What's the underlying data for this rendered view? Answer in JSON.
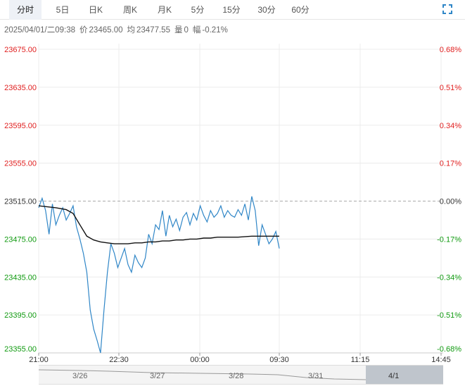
{
  "tabs": [
    {
      "label": "分时",
      "active": true
    },
    {
      "label": "5日",
      "active": false
    },
    {
      "label": "日K",
      "active": false
    },
    {
      "label": "周K",
      "active": false
    },
    {
      "label": "月K",
      "active": false
    },
    {
      "label": "5分",
      "active": false
    },
    {
      "label": "15分",
      "active": false
    },
    {
      "label": "30分",
      "active": false
    },
    {
      "label": "60分",
      "active": false
    }
  ],
  "info": {
    "datetime": "2025/04/01/二09:38",
    "price_label": "价",
    "price": "23465.00",
    "avg_label": "均",
    "avg": "23477.55",
    "volume_label": "量",
    "volume": "0",
    "change_label": "幅",
    "change": "-0.21%"
  },
  "chart_data": {
    "type": "line",
    "title": "",
    "y_ticks": [
      "23675.00",
      "23635.00",
      "23595.00",
      "23555.00",
      "23515.00",
      "23475.00",
      "23435.00",
      "23395.00",
      "23355.00"
    ],
    "y_tick_values": [
      23675,
      23635,
      23595,
      23555,
      23515,
      23475,
      23435,
      23395,
      23355
    ],
    "pct_ticks": [
      "0.68%",
      "0.51%",
      "0.34%",
      "0.17%",
      "0.00%",
      "-0.17%",
      "-0.34%",
      "-0.51%",
      "-0.68%"
    ],
    "x_ticks": [
      "21:00",
      "22:30",
      "00:00",
      "09:30",
      "11:15",
      "14:45"
    ],
    "ylim": [
      23355,
      23675
    ],
    "reference": 23515,
    "colors": {
      "up": "#e02020",
      "down": "#109a10",
      "flat": "#333333",
      "price": "#2f86c7",
      "avg": "#111111"
    },
    "series": [
      {
        "values": [
          23508,
          23518,
          23505,
          23480,
          23512,
          23490,
          23500,
          23508,
          23495,
          23502,
          23510,
          23488,
          23475,
          23460,
          23440,
          23400,
          23380,
          23368,
          23355,
          23400,
          23440,
          23470,
          23460,
          23445,
          23455,
          23465,
          23448,
          23440,
          23458,
          23450,
          23445,
          23455,
          23480,
          23470,
          23490,
          23485,
          23505,
          23478,
          23500,
          23488,
          23496,
          23484,
          23498,
          23503,
          23490,
          23502,
          23495,
          23510,
          23500,
          23493,
          23505,
          23498,
          23502,
          23510,
          23498,
          23505,
          23500,
          23498,
          23506,
          23500,
          23512,
          23495,
          23520,
          23505,
          23468,
          23490,
          23480,
          23470,
          23475,
          23483,
          23465
        ],
        "x_index": [
          0,
          1,
          2,
          3,
          4,
          5,
          6,
          7,
          8,
          9,
          10,
          11,
          12,
          13,
          14,
          15,
          16,
          17,
          18,
          19,
          20,
          21,
          22,
          23,
          24,
          25,
          26,
          27,
          28,
          29,
          30,
          31,
          32,
          33,
          34,
          35,
          36,
          37,
          38,
          39,
          40,
          41,
          42,
          43,
          44,
          45,
          46,
          47,
          48,
          49,
          50,
          51,
          52,
          53,
          54,
          55,
          56,
          57,
          58,
          59,
          60,
          61,
          62,
          63,
          64,
          65,
          66,
          67,
          68,
          69,
          70
        ]
      },
      {
        "values": [
          23510,
          23508,
          23506,
          23502,
          23490,
          23478,
          23474,
          23472,
          23471,
          23470,
          23470,
          23470,
          23471,
          23471,
          23472,
          23472,
          23473,
          23473,
          23474,
          23474,
          23475,
          23475,
          23476,
          23476,
          23477,
          23477,
          23477,
          23478,
          23478,
          23478
        ],
        "x_index": [
          0,
          5,
          8,
          10,
          12,
          14,
          16,
          18,
          20,
          22,
          24,
          26,
          28,
          30,
          32,
          34,
          36,
          38,
          40,
          42,
          44,
          46,
          48,
          50,
          52,
          54,
          58,
          62,
          66,
          70
        ]
      }
    ]
  },
  "navigator": {
    "labels": [
      "3/26",
      "3/27",
      "3/28",
      "3/31",
      "4/1"
    ]
  }
}
